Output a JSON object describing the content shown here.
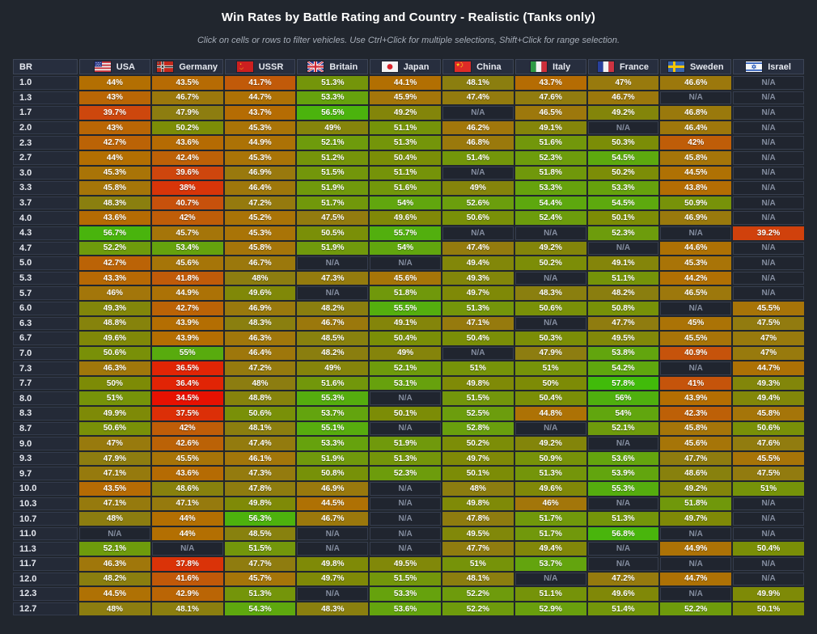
{
  "title": "Win Rates by Battle Rating and Country - Realistic (Tanks only)",
  "subtitle": "Click on cells or rows to filter vehicles. Use Ctrl+Click for multiple selections, Shift+Click for range selection.",
  "colors": {
    "page_bg": "#21262e",
    "header_bg": "#272e3e",
    "header_border": "#3d4557",
    "row_label_bg": "#242a37",
    "row_label_border": "#333b4c",
    "na_bg": "#20252f",
    "na_border": "#363e4e",
    "na_text": "#858ea0",
    "cell_text": "#ffffff",
    "title_text": "#ffffff",
    "subtitle_text": "#a6adb8"
  },
  "chart_data": {
    "type": "heatmap",
    "title": "Win Rates by Battle Rating and Country - Realistic (Tanks only)",
    "x_label_column": "BR",
    "value_suffix": "%",
    "na_label": "N/A",
    "legend": "none",
    "columns": [
      {
        "id": "usa",
        "name": "USA",
        "flag": "usa-flag"
      },
      {
        "id": "germany",
        "name": "Germany",
        "flag": "germany-flag"
      },
      {
        "id": "ussr",
        "name": "USSR",
        "flag": "ussr-flag"
      },
      {
        "id": "britain",
        "name": "Britain",
        "flag": "britain-flag"
      },
      {
        "id": "japan",
        "name": "Japan",
        "flag": "japan-flag"
      },
      {
        "id": "china",
        "name": "China",
        "flag": "china-flag"
      },
      {
        "id": "italy",
        "name": "Italy",
        "flag": "italy-flag"
      },
      {
        "id": "france",
        "name": "France",
        "flag": "france-flag"
      },
      {
        "id": "sweden",
        "name": "Sweden",
        "flag": "sweden-flag"
      },
      {
        "id": "israel",
        "name": "Israel",
        "flag": "israel-flag"
      }
    ],
    "rows": [
      "1.0",
      "1.3",
      "1.7",
      "2.0",
      "2.3",
      "2.7",
      "3.0",
      "3.3",
      "3.7",
      "4.0",
      "4.3",
      "4.7",
      "5.0",
      "5.3",
      "5.7",
      "6.0",
      "6.3",
      "6.7",
      "7.0",
      "7.3",
      "7.7",
      "8.0",
      "8.3",
      "8.7",
      "9.0",
      "9.3",
      "9.7",
      "10.0",
      "10.3",
      "10.7",
      "11.0",
      "11.3",
      "11.7",
      "12.0",
      "12.3",
      "12.7"
    ],
    "values": [
      [
        44,
        43.5,
        41.7,
        51.3,
        44.1,
        48.1,
        43.7,
        47,
        46.6,
        null
      ],
      [
        43,
        46.7,
        44.7,
        53.3,
        45.9,
        47.4,
        47.6,
        46.7,
        null,
        null
      ],
      [
        39.7,
        47.9,
        43.7,
        56.5,
        49.2,
        null,
        46.5,
        49.2,
        46.8,
        null
      ],
      [
        43,
        50.2,
        45.3,
        49,
        51.1,
        46.2,
        49.1,
        null,
        46.4,
        null
      ],
      [
        42.7,
        43.6,
        44.9,
        52.1,
        51.3,
        46.8,
        51.6,
        50.3,
        42,
        null
      ],
      [
        44,
        42.4,
        45.3,
        51.2,
        50.4,
        51.4,
        52.3,
        54.5,
        45.8,
        null
      ],
      [
        45.3,
        39.6,
        46.9,
        51.5,
        51.1,
        null,
        51.8,
        50.2,
        44.5,
        null
      ],
      [
        45.8,
        38,
        46.4,
        51.9,
        51.6,
        49,
        53.3,
        53.3,
        43.8,
        null
      ],
      [
        48.3,
        40.7,
        47.2,
        51.7,
        54,
        52.6,
        54.4,
        54.5,
        50.9,
        null
      ],
      [
        43.6,
        42,
        45.2,
        47.5,
        49.6,
        50.6,
        52.4,
        50.1,
        46.9,
        null
      ],
      [
        56.7,
        45.7,
        45.3,
        50.5,
        55.7,
        null,
        null,
        52.3,
        null,
        39.2
      ],
      [
        52.2,
        53.4,
        45.8,
        51.9,
        54,
        47.4,
        49.2,
        null,
        44.6,
        null
      ],
      [
        42.7,
        45.6,
        46.7,
        null,
        null,
        49.4,
        50.2,
        49.1,
        45.3,
        null
      ],
      [
        43.3,
        41.8,
        48,
        47.3,
        45.6,
        49.3,
        null,
        51.1,
        44.2,
        null
      ],
      [
        46,
        44.9,
        49.6,
        null,
        51.8,
        49.7,
        48.3,
        48.2,
        46.5,
        null
      ],
      [
        49.3,
        42.7,
        46.9,
        48.2,
        55.5,
        51.3,
        50.6,
        50.8,
        null,
        45.5
      ],
      [
        48.8,
        43.9,
        48.3,
        46.7,
        49.1,
        47.1,
        null,
        47.7,
        45,
        47.5
      ],
      [
        49.6,
        43.9,
        46.3,
        48.5,
        50.4,
        50.4,
        50.3,
        49.5,
        45.5,
        47
      ],
      [
        50.6,
        55,
        46.4,
        48.2,
        49,
        null,
        47.9,
        53.8,
        40.9,
        47
      ],
      [
        46.3,
        36.5,
        47.2,
        49,
        52.1,
        51,
        51,
        54.2,
        null,
        44.7
      ],
      [
        50,
        36.4,
        48,
        51.6,
        53.1,
        49.8,
        50,
        57.8,
        41,
        49.3
      ],
      [
        51,
        34.5,
        48.8,
        55.3,
        null,
        51.5,
        50.4,
        56,
        43.9,
        49.4
      ],
      [
        49.9,
        37.5,
        50.6,
        53.7,
        50.1,
        52.5,
        44.8,
        54,
        42.3,
        45.8
      ],
      [
        50.6,
        42,
        48.1,
        55.1,
        null,
        52.8,
        null,
        52.1,
        45.8,
        50.6
      ],
      [
        47,
        42.6,
        47.4,
        53.3,
        51.9,
        50.2,
        49.2,
        null,
        45.6,
        47.6
      ],
      [
        47.9,
        45.5,
        46.1,
        51.9,
        51.3,
        49.7,
        50.9,
        53.6,
        47.7,
        45.5
      ],
      [
        47.1,
        43.6,
        47.3,
        50.8,
        52.3,
        50.1,
        51.3,
        53.9,
        48.6,
        47.5
      ],
      [
        43.5,
        48.6,
        47.8,
        46.9,
        null,
        48,
        49.6,
        55.3,
        49.2,
        51
      ],
      [
        47.1,
        47.1,
        49.8,
        44.5,
        null,
        49.8,
        46,
        null,
        51.8,
        null
      ],
      [
        48,
        44,
        56.3,
        46.7,
        null,
        47.8,
        51.7,
        51.3,
        49.7,
        null
      ],
      [
        null,
        44,
        48.5,
        null,
        null,
        49.5,
        51.7,
        56.8,
        null,
        null
      ],
      [
        52.1,
        null,
        51.5,
        null,
        null,
        47.7,
        49.4,
        null,
        44.9,
        50.4
      ],
      [
        46.3,
        37.8,
        47.7,
        49.8,
        49.5,
        51,
        53.7,
        null,
        null,
        null
      ],
      [
        48.2,
        41.6,
        45.7,
        49.7,
        51.5,
        48.1,
        null,
        47.2,
        44.7,
        null
      ],
      [
        44.5,
        42.9,
        51.3,
        null,
        53.3,
        52.2,
        51.1,
        49.6,
        null,
        49.9
      ],
      [
        48,
        48.1,
        54.3,
        48.3,
        53.6,
        52.2,
        52.9,
        51.4,
        52.2,
        50.1
      ]
    ],
    "color_scale": [
      {
        "value": 34,
        "color": "#e80c00"
      },
      {
        "value": 37,
        "color": "#df2a06"
      },
      {
        "value": 40,
        "color": "#cb4a0e"
      },
      {
        "value": 42,
        "color": "#bf5d08"
      },
      {
        "value": 44,
        "color": "#b36f02"
      },
      {
        "value": 46,
        "color": "#a3760a"
      },
      {
        "value": 48,
        "color": "#8c7d10"
      },
      {
        "value": 50,
        "color": "#7d8b06"
      },
      {
        "value": 52,
        "color": "#6f9a0c"
      },
      {
        "value": 54,
        "color": "#61a60e"
      },
      {
        "value": 56,
        "color": "#4fb00e"
      },
      {
        "value": 58,
        "color": "#3fbc0a"
      }
    ]
  }
}
